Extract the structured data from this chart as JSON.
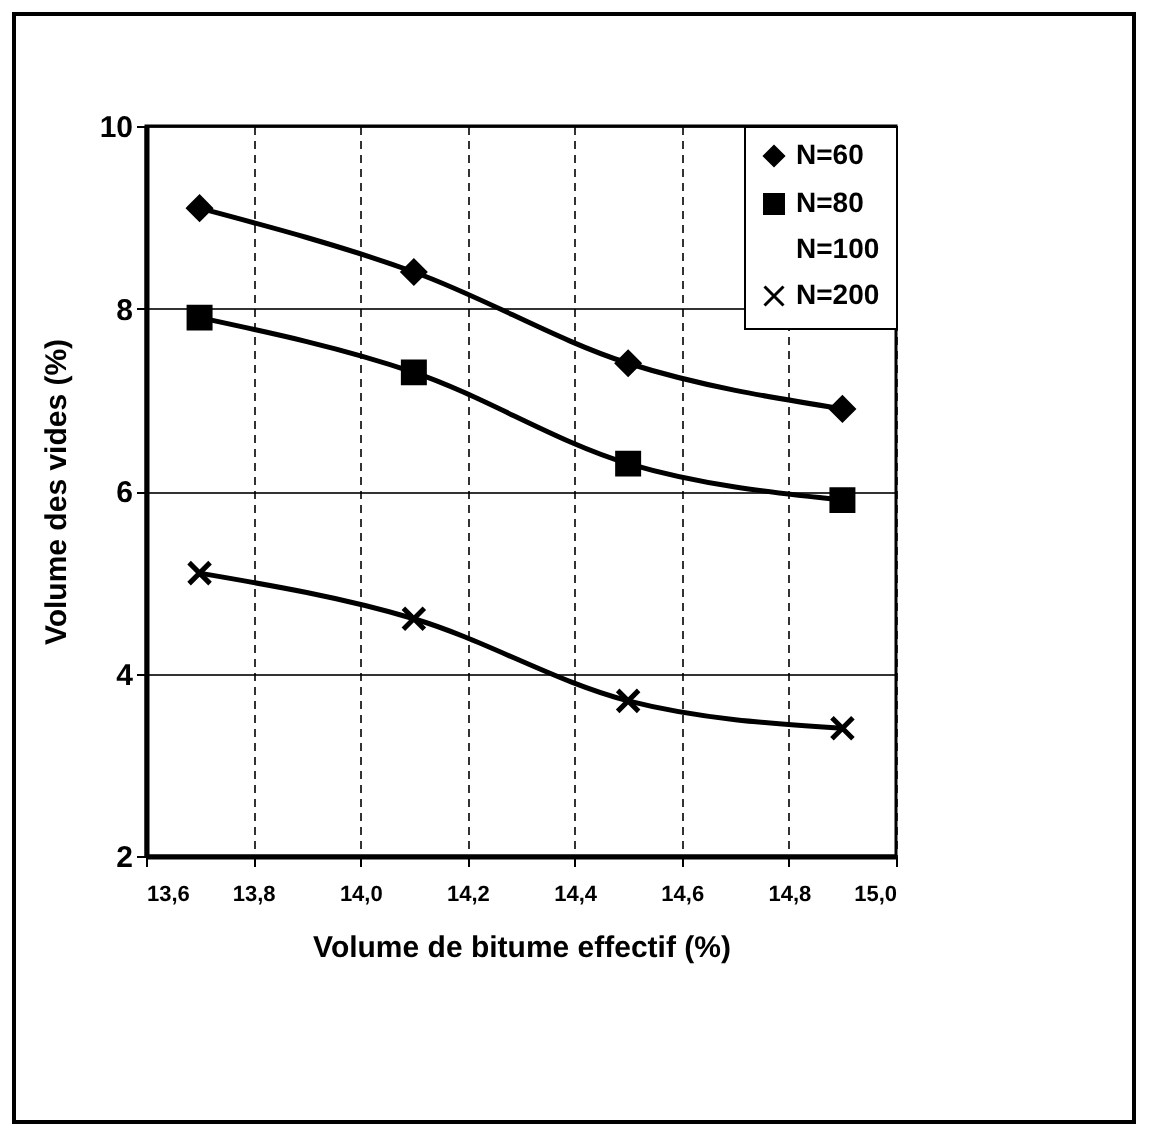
{
  "chart_data": {
    "type": "line",
    "xlabel": "Volume de bitume effectif (%)",
    "ylabel": "Volume des vides (%)",
    "x": [
      13.7,
      14.1,
      14.5,
      14.9
    ],
    "series": [
      {
        "name": "N=60",
        "color": "#000000",
        "marker": "diamond",
        "values": [
          9.1,
          8.4,
          7.4,
          6.9
        ]
      },
      {
        "name": "N=80",
        "color": "#000000",
        "marker": "square",
        "values": [
          7.9,
          7.3,
          6.3,
          5.9
        ]
      },
      {
        "name": "N=100",
        "values": [
          null,
          null,
          null,
          null
        ]
      },
      {
        "name": "N=200",
        "color": "#000000",
        "marker": "cross",
        "values": [
          5.1,
          4.6,
          3.7,
          3.4
        ]
      }
    ],
    "xlim": [
      13.6,
      15.0
    ],
    "xticks": [
      {
        "value": 13.6,
        "label": "13,6"
      },
      {
        "value": 13.8,
        "label": "13,8"
      },
      {
        "value": 14.0,
        "label": "14,0"
      },
      {
        "value": 14.2,
        "label": "14,2"
      },
      {
        "value": 14.4,
        "label": "14,4"
      },
      {
        "value": 14.6,
        "label": "14,6"
      },
      {
        "value": 14.8,
        "label": "14,8"
      },
      {
        "value": 15.0,
        "label": "15,0"
      }
    ],
    "ylim": [
      2,
      10
    ],
    "yticks": [
      2,
      4,
      6,
      8,
      10
    ],
    "grid": true,
    "legend": "top right",
    "line_style": "solid"
  }
}
